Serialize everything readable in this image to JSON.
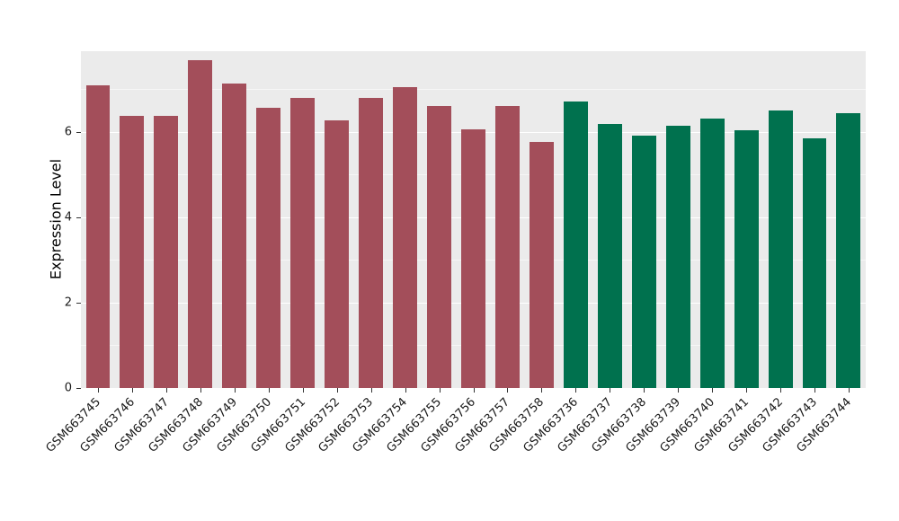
{
  "chart_data": {
    "type": "bar",
    "title": "",
    "xlabel": "",
    "ylabel": "Expression Level",
    "ylim": [
      0,
      7.9
    ],
    "yticks": [
      0,
      2,
      4,
      6
    ],
    "yticks_minor": [
      1,
      3,
      5,
      7
    ],
    "grid": true,
    "legend": "none",
    "categories": [
      "GSM663745",
      "GSM663746",
      "GSM663747",
      "GSM663748",
      "GSM663749",
      "GSM663750",
      "GSM663751",
      "GSM663752",
      "GSM663753",
      "GSM663754",
      "GSM663755",
      "GSM663756",
      "GSM663757",
      "GSM663758",
      "GSM663736",
      "GSM663737",
      "GSM663738",
      "GSM663739",
      "GSM663740",
      "GSM663741",
      "GSM663742",
      "GSM663743",
      "GSM663744"
    ],
    "values": [
      7.1,
      6.38,
      6.38,
      7.68,
      7.15,
      6.57,
      6.8,
      6.28,
      6.8,
      7.05,
      6.62,
      6.07,
      6.62,
      5.78,
      6.72,
      6.2,
      5.92,
      6.16,
      6.31,
      6.05,
      6.52,
      5.86,
      6.45
    ],
    "groups": [
      "red",
      "red",
      "red",
      "red",
      "red",
      "red",
      "red",
      "red",
      "red",
      "red",
      "red",
      "red",
      "red",
      "red",
      "green",
      "green",
      "green",
      "green",
      "green",
      "green",
      "green",
      "green",
      "green"
    ],
    "group_colors": {
      "red": "#A34E5A",
      "green": "#00714E"
    },
    "style": {
      "panel_background": "#EBEBEB",
      "grid_major_color": "#FFFFFF",
      "grid_minor_color": "rgba(255,255,255,0.55)",
      "tick_color": "#333333",
      "tick_label_color": "#1a1a1a"
    }
  }
}
